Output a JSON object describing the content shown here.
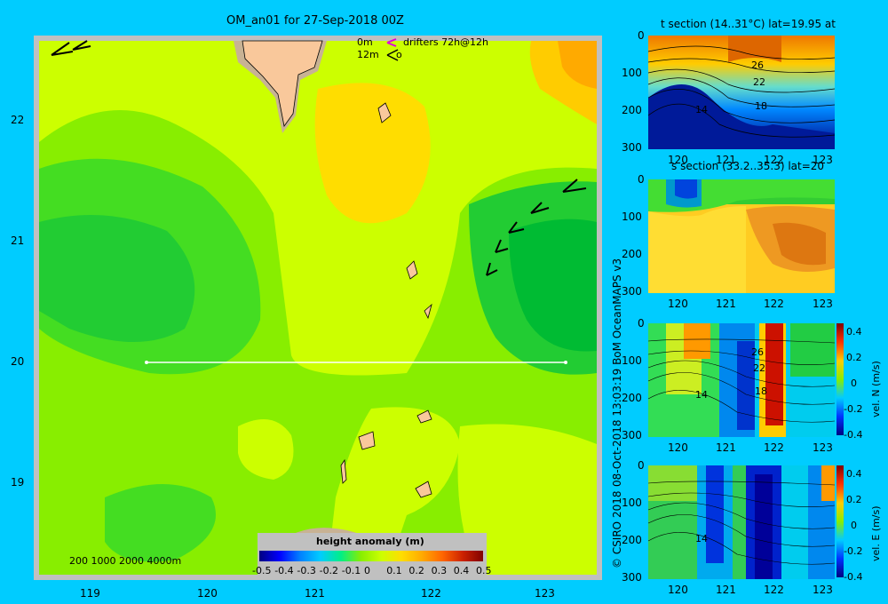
{
  "main_map": {
    "title": "OM_an01 for 27-Sep-2018 00Z",
    "legend_line1_a": "0m",
    "legend_line1_b": "drifters 72h@12h",
    "legend_line2_a": "12m",
    "legend_line2_b": "o",
    "depth_legend": "200  1000  2000  4000m",
    "x_ticks": [
      "119",
      "120",
      "121",
      "122",
      "123"
    ],
    "y_ticks": [
      "22",
      "21",
      "20",
      "19"
    ],
    "colorbar_title": "height anomaly (m)",
    "colorbar_ticks": [
      "-0.5",
      "-0.4",
      "-0.3",
      "-0.2",
      "-0.1",
      "0",
      "0.1",
      "0.2",
      "0.3",
      "0.4",
      "0.5"
    ],
    "colors": {
      "land": "#f9c89b",
      "shelf": "#c8b294",
      "frame": "#c0c0c0",
      "bg": "#00ccff"
    }
  },
  "panels": [
    {
      "title": "t section (14..31°C) lat=19.95 at",
      "y_ticks": [
        "0",
        "100",
        "200",
        "300"
      ],
      "x_ticks": [
        "120",
        "121",
        "122",
        "123"
      ],
      "contour_labels": [
        "26",
        "22",
        "18",
        "14"
      ]
    },
    {
      "title": "s section (33.2..35.3) lat=20",
      "y_ticks": [
        "0",
        "100",
        "200",
        "300"
      ],
      "x_ticks": [
        "120",
        "121",
        "122",
        "123"
      ]
    },
    {
      "y_ticks": [
        "0",
        "100",
        "200",
        "300"
      ],
      "x_ticks": [
        "120",
        "121",
        "122",
        "123"
      ],
      "contour_labels": [
        "26",
        "22",
        "18",
        "14"
      ],
      "colorbar_ticks": [
        "0.4",
        "0.2",
        "0",
        "-0.2",
        "-0.4"
      ],
      "colorbar_label": "vel. N (m/s)"
    },
    {
      "y_ticks": [
        "0",
        "100",
        "200",
        "300"
      ],
      "x_ticks": [
        "120",
        "121",
        "122",
        "123"
      ],
      "contour_labels": [
        "14"
      ],
      "colorbar_ticks": [
        "0.4",
        "0.2",
        "0",
        "-0.2",
        "-0.4"
      ],
      "colorbar_label": "vel. E (m/s)"
    }
  ],
  "credits": {
    "line1": "08-Oct-2018 13:03:19 BoM OceanMAPS v3",
    "line2": "© CSIRO 2018"
  }
}
